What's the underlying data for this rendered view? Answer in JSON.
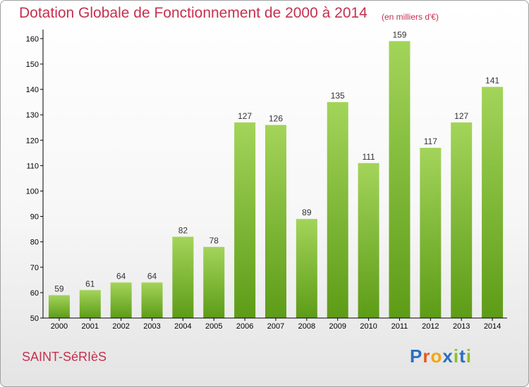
{
  "header": {
    "title": "Dotation Globale de Fonctionnement de 2000 à 2014",
    "unit": "(en milliers d'€)"
  },
  "footer": {
    "commune": "SAINT-SéRIèS",
    "logo": "Proxiti",
    "logo_letters": [
      "P",
      "r",
      "o",
      "x",
      "i",
      "t",
      "i"
    ],
    "logo_colors": [
      "#2a6fc1",
      "#e8591a",
      "#f2a60f",
      "#2a6fc1",
      "#8cbf26",
      "#2a6fc1",
      "#8cbf26"
    ]
  },
  "colors": {
    "bar_light": "#a3d45a",
    "bar_dark": "#5d9c17",
    "axis": "#000000",
    "title": "#c5304f"
  },
  "chart_data": {
    "type": "bar",
    "categories": [
      "2000",
      "2001",
      "2002",
      "2003",
      "2004",
      "2005",
      "2006",
      "2007",
      "2008",
      "2009",
      "2010",
      "2011",
      "2012",
      "2013",
      "2014"
    ],
    "values": [
      59,
      61,
      64,
      64,
      82,
      78,
      127,
      126,
      89,
      135,
      111,
      159,
      117,
      127,
      141
    ],
    "data_labels": [
      "59",
      "61",
      "64",
      "64",
      "82",
      "78",
      "127",
      "126",
      "89",
      "135",
      "111",
      "159",
      "117",
      "127",
      "141"
    ],
    "yticks": [
      50,
      60,
      70,
      80,
      90,
      100,
      110,
      120,
      130,
      140,
      150,
      160
    ],
    "ytick_labels": [
      "50",
      "60",
      "70",
      "80",
      "90",
      "100",
      "110",
      "120",
      "130",
      "140",
      "150",
      "160"
    ],
    "ylim": [
      50,
      163
    ],
    "grid": false,
    "title": "Dotation Globale de Fonctionnement de 2000 à 2014",
    "xlabel": "",
    "ylabel": ""
  }
}
